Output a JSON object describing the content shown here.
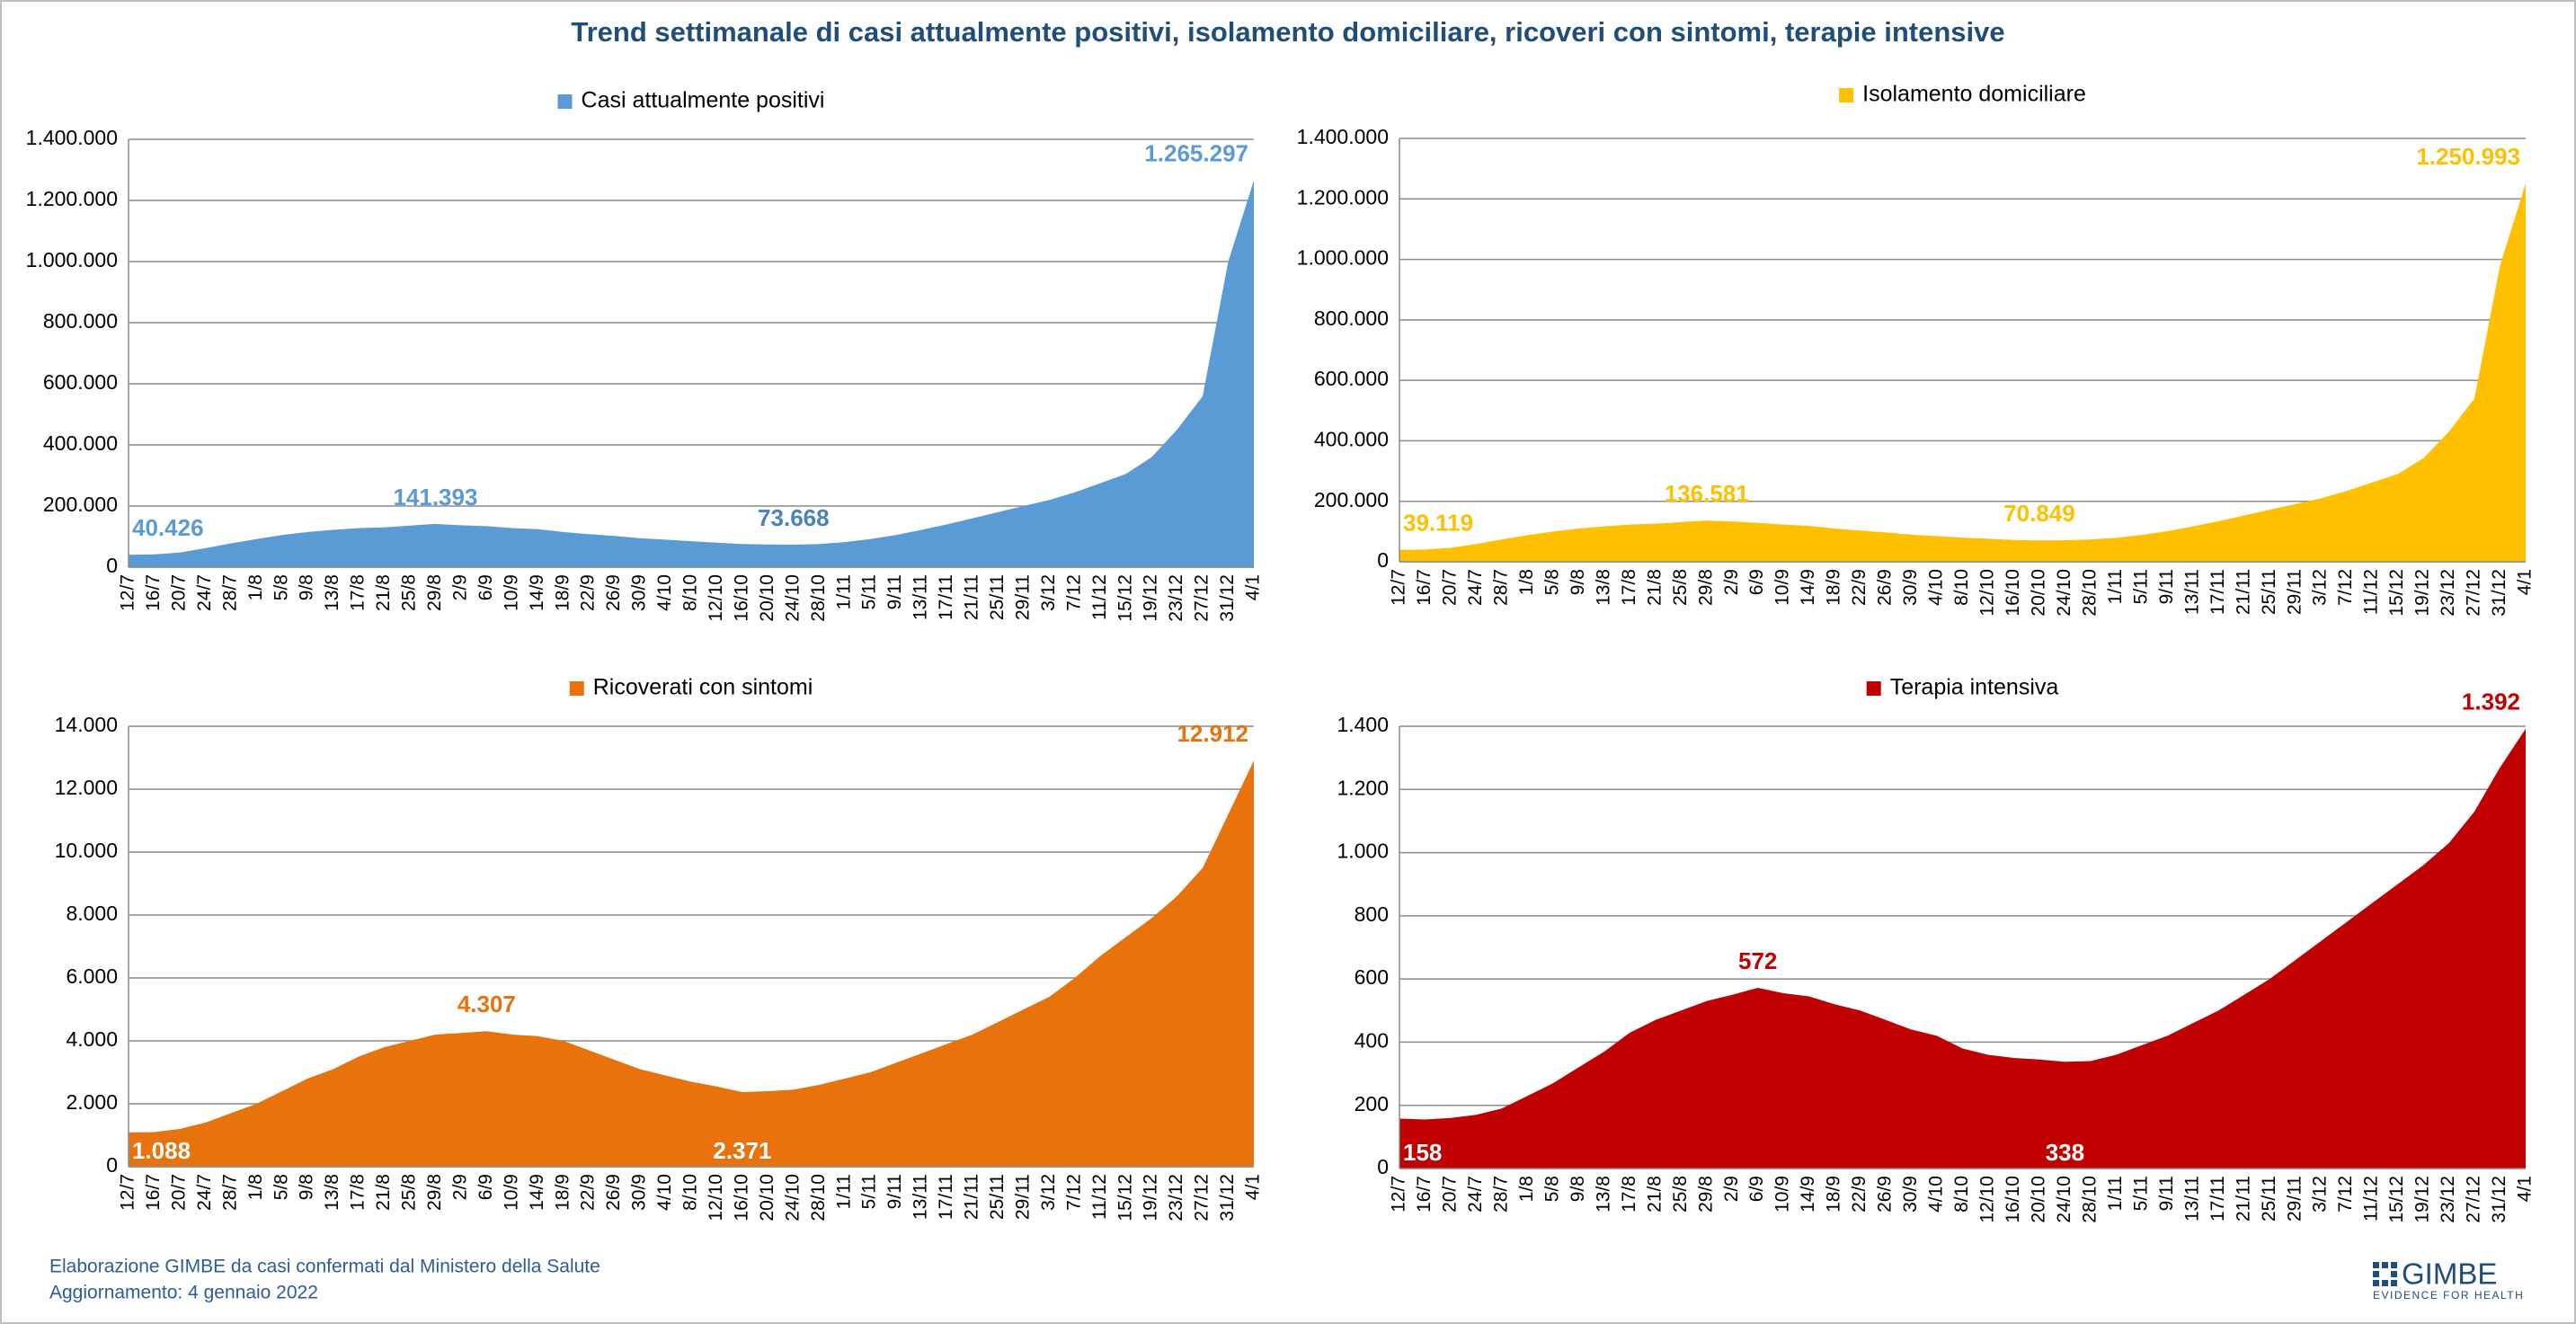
{
  "title": "Trend settimanale di casi attualmente positivi, isolamento domiciliare, ricoveri con sintomi, terapie intensive",
  "footer": [
    "Elaborazione GIMBE da casi confermati dal Ministero della Salute",
    "Aggiornamento: 4 gennaio 2022"
  ],
  "logo": {
    "name": "GIMBE",
    "tagline": "EVIDENCE FOR HEALTH"
  },
  "chart_data": [
    {
      "type": "area",
      "series_name": "Casi attualmente positivi",
      "color": "#5b9bd5",
      "grid": true,
      "categories": [
        "12/7",
        "16/7",
        "20/7",
        "24/7",
        "28/7",
        "1/8",
        "5/8",
        "9/8",
        "13/8",
        "17/8",
        "21/8",
        "25/8",
        "29/8",
        "2/9",
        "6/9",
        "10/9",
        "14/9",
        "18/9",
        "22/9",
        "26/9",
        "30/9",
        "4/10",
        "8/10",
        "12/10",
        "16/10",
        "20/10",
        "24/10",
        "28/10",
        "1/11",
        "5/11",
        "9/11",
        "13/11",
        "17/11",
        "21/11",
        "25/11",
        "29/11",
        "3/12",
        "7/12",
        "11/12",
        "15/12",
        "19/12",
        "23/12",
        "27/12",
        "31/12",
        "4/1"
      ],
      "values": [
        40426,
        42000,
        48000,
        62000,
        78000,
        92000,
        105000,
        115000,
        122000,
        128000,
        130000,
        136000,
        141393,
        137000,
        134000,
        128000,
        124000,
        115000,
        108000,
        102000,
        95000,
        90000,
        85000,
        80000,
        76000,
        74000,
        73668,
        76000,
        82000,
        92000,
        105000,
        122000,
        140000,
        160000,
        180000,
        200000,
        220000,
        245000,
        275000,
        305000,
        360000,
        450000,
        560000,
        1000000,
        1265297
      ],
      "value_labels": [
        "40.426",
        null,
        null,
        null,
        null,
        null,
        null,
        null,
        null,
        null,
        null,
        null,
        "141.393",
        null,
        null,
        null,
        null,
        null,
        null,
        null,
        null,
        null,
        null,
        null,
        null,
        null,
        "73.668",
        null,
        null,
        null,
        null,
        null,
        null,
        null,
        null,
        null,
        null,
        null,
        null,
        null,
        null,
        null,
        null,
        null,
        "1.265.297"
      ],
      "value_label_colors": [
        "#5b9bd5",
        null,
        null,
        null,
        null,
        null,
        null,
        null,
        null,
        null,
        null,
        null,
        "#5b9bd5",
        null,
        null,
        null,
        null,
        null,
        null,
        null,
        null,
        null,
        null,
        null,
        null,
        null,
        "#4a82bd",
        null,
        null,
        null,
        null,
        null,
        null,
        null,
        null,
        null,
        null,
        null,
        null,
        null,
        null,
        null,
        null,
        null,
        "#5b9bd5"
      ],
      "ylim": [
        0,
        1400000
      ],
      "yticks": [
        0,
        {
          "value": 200000,
          "label": "200.000"
        },
        {
          "value": 400000,
          "label": "400.000"
        },
        {
          "value": 600000,
          "label": "600.000"
        },
        {
          "value": 800000,
          "label": "800.000"
        },
        {
          "value": 1000000,
          "label": "1.000.000"
        },
        {
          "value": 1200000,
          "label": "1.200.000"
        },
        {
          "value": 1400000,
          "label": "1.400.000"
        }
      ]
    },
    {
      "type": "area",
      "series_name": "Isolamento domiciliare",
      "color": "#ffc000",
      "grid": true,
      "categories": [
        "12/7",
        "16/7",
        "20/7",
        "24/7",
        "28/7",
        "1/8",
        "5/8",
        "9/8",
        "13/8",
        "17/8",
        "21/8",
        "25/8",
        "29/8",
        "2/9",
        "6/9",
        "10/9",
        "14/9",
        "18/9",
        "22/9",
        "26/9",
        "30/9",
        "4/10",
        "8/10",
        "12/10",
        "16/10",
        "20/10",
        "24/10",
        "28/10",
        "1/11",
        "5/11",
        "9/11",
        "13/11",
        "17/11",
        "21/11",
        "25/11",
        "29/11",
        "3/12",
        "7/12",
        "11/12",
        "15/12",
        "19/12",
        "23/12",
        "27/12",
        "31/12",
        "4/1"
      ],
      "values": [
        39119,
        41000,
        46000,
        59000,
        74000,
        88000,
        100000,
        110000,
        117000,
        123000,
        126000,
        131000,
        136581,
        133000,
        129000,
        123000,
        119000,
        110000,
        103000,
        97000,
        90000,
        85000,
        80000,
        76000,
        72000,
        70849,
        71000,
        74000,
        79000,
        89000,
        101000,
        117000,
        134000,
        153000,
        172000,
        191000,
        210000,
        234000,
        262000,
        290000,
        342000,
        430000,
        540000,
        980000,
        1250993
      ],
      "value_labels": [
        "39.119",
        null,
        null,
        null,
        null,
        null,
        null,
        null,
        null,
        null,
        null,
        null,
        "136.581",
        null,
        null,
        null,
        null,
        null,
        null,
        null,
        null,
        null,
        null,
        null,
        null,
        "70.849",
        null,
        null,
        null,
        null,
        null,
        null,
        null,
        null,
        null,
        null,
        null,
        null,
        null,
        null,
        null,
        null,
        null,
        null,
        "1.250.993"
      ],
      "value_label_colors": [
        "#ffc000",
        null,
        null,
        null,
        null,
        null,
        null,
        null,
        null,
        null,
        null,
        null,
        "#ffc000",
        null,
        null,
        null,
        null,
        null,
        null,
        null,
        null,
        null,
        null,
        null,
        null,
        "#ffc000",
        null,
        null,
        null,
        null,
        null,
        null,
        null,
        null,
        null,
        null,
        null,
        null,
        null,
        null,
        null,
        null,
        null,
        null,
        "#ffc000"
      ],
      "ylim": [
        0,
        1400000
      ],
      "yticks": [
        0,
        {
          "value": 200000,
          "label": "200.000"
        },
        {
          "value": 400000,
          "label": "400.000"
        },
        {
          "value": 600000,
          "label": "600.000"
        },
        {
          "value": 800000,
          "label": "800.000"
        },
        {
          "value": 1000000,
          "label": "1.000.000"
        },
        {
          "value": 1200000,
          "label": "1.200.000"
        },
        {
          "value": 1400000,
          "label": "1.400.000"
        }
      ]
    },
    {
      "type": "area",
      "series_name": "Ricoverati con sintomi",
      "color": "#e8720c",
      "grid": true,
      "categories": [
        "12/7",
        "16/7",
        "20/7",
        "24/7",
        "28/7",
        "1/8",
        "5/8",
        "9/8",
        "13/8",
        "17/8",
        "21/8",
        "25/8",
        "29/8",
        "2/9",
        "6/9",
        "10/9",
        "14/9",
        "18/9",
        "22/9",
        "26/9",
        "30/9",
        "4/10",
        "8/10",
        "12/10",
        "16/10",
        "20/10",
        "24/10",
        "28/10",
        "1/11",
        "5/11",
        "9/11",
        "13/11",
        "17/11",
        "21/11",
        "25/11",
        "29/11",
        "3/12",
        "7/12",
        "11/12",
        "15/12",
        "19/12",
        "23/12",
        "27/12",
        "31/12",
        "4/1"
      ],
      "values": [
        1088,
        1100,
        1200,
        1400,
        1700,
        2000,
        2400,
        2800,
        3100,
        3500,
        3800,
        4000,
        4200,
        4250,
        4307,
        4200,
        4150,
        4000,
        3700,
        3400,
        3100,
        2900,
        2700,
        2550,
        2371,
        2400,
        2450,
        2600,
        2800,
        3000,
        3300,
        3600,
        3900,
        4200,
        4600,
        5000,
        5400,
        6000,
        6700,
        7300,
        7900,
        8600,
        9500,
        11200,
        12912
      ],
      "value_labels": [
        "1.088",
        null,
        null,
        null,
        null,
        null,
        null,
        null,
        null,
        null,
        null,
        null,
        null,
        null,
        "4.307",
        null,
        null,
        null,
        null,
        null,
        null,
        null,
        null,
        null,
        "2.371",
        null,
        null,
        null,
        null,
        null,
        null,
        null,
        null,
        null,
        null,
        null,
        null,
        null,
        null,
        null,
        null,
        null,
        null,
        null,
        "12.912"
      ],
      "value_label_colors": [
        "#ffffff",
        null,
        null,
        null,
        null,
        null,
        null,
        null,
        null,
        null,
        null,
        null,
        null,
        null,
        "#e8720c",
        null,
        null,
        null,
        null,
        null,
        null,
        null,
        null,
        null,
        "#ffffff",
        null,
        null,
        null,
        null,
        null,
        null,
        null,
        null,
        null,
        null,
        null,
        null,
        null,
        null,
        null,
        null,
        null,
        null,
        null,
        "#e8720c"
      ],
      "ylim": [
        0,
        14000
      ],
      "yticks": [
        0,
        {
          "value": 2000,
          "label": "2.000"
        },
        {
          "value": 4000,
          "label": "4.000"
        },
        {
          "value": 6000,
          "label": "6.000"
        },
        {
          "value": 8000,
          "label": "8.000"
        },
        {
          "value": 10000,
          "label": "10.000"
        },
        {
          "value": 12000,
          "label": "12.000"
        },
        {
          "value": 14000,
          "label": "14.000"
        }
      ]
    },
    {
      "type": "area",
      "series_name": "Terapia intensiva",
      "color": "#c00000",
      "grid": true,
      "categories": [
        "12/7",
        "16/7",
        "20/7",
        "24/7",
        "28/7",
        "1/8",
        "5/8",
        "9/8",
        "13/8",
        "17/8",
        "21/8",
        "25/8",
        "29/8",
        "2/9",
        "6/9",
        "10/9",
        "14/9",
        "18/9",
        "22/9",
        "26/9",
        "30/9",
        "4/10",
        "8/10",
        "12/10",
        "16/10",
        "20/10",
        "24/10",
        "28/10",
        "1/11",
        "5/11",
        "9/11",
        "13/11",
        "17/11",
        "21/11",
        "25/11",
        "29/11",
        "3/12",
        "7/12",
        "11/12",
        "15/12",
        "19/12",
        "23/12",
        "27/12",
        "31/12",
        "4/1"
      ],
      "values": [
        158,
        155,
        160,
        170,
        190,
        230,
        270,
        320,
        370,
        430,
        470,
        500,
        530,
        550,
        572,
        555,
        545,
        520,
        500,
        470,
        440,
        420,
        380,
        360,
        350,
        345,
        338,
        340,
        360,
        390,
        420,
        460,
        500,
        550,
        600,
        660,
        720,
        780,
        840,
        900,
        960,
        1030,
        1130,
        1270,
        1392
      ],
      "value_labels": [
        "158",
        null,
        null,
        null,
        null,
        null,
        null,
        null,
        null,
        null,
        null,
        null,
        null,
        null,
        "572",
        null,
        null,
        null,
        null,
        null,
        null,
        null,
        null,
        null,
        null,
        null,
        "338",
        null,
        null,
        null,
        null,
        null,
        null,
        null,
        null,
        null,
        null,
        null,
        null,
        null,
        null,
        null,
        null,
        null,
        "1.392"
      ],
      "value_label_colors": [
        "#ffffff",
        null,
        null,
        null,
        null,
        null,
        null,
        null,
        null,
        null,
        null,
        null,
        null,
        null,
        "#c00000",
        null,
        null,
        null,
        null,
        null,
        null,
        null,
        null,
        null,
        null,
        null,
        "#ffffff",
        null,
        null,
        null,
        null,
        null,
        null,
        null,
        null,
        null,
        null,
        null,
        null,
        null,
        null,
        null,
        null,
        null,
        "#c00000"
      ],
      "ylim": [
        0,
        1400
      ],
      "yticks": [
        0,
        200,
        400,
        600,
        800,
        {
          "value": 1000,
          "label": "1.000"
        },
        {
          "value": 1200,
          "label": "1.200"
        },
        {
          "value": 1400,
          "label": "1.400"
        }
      ]
    }
  ]
}
